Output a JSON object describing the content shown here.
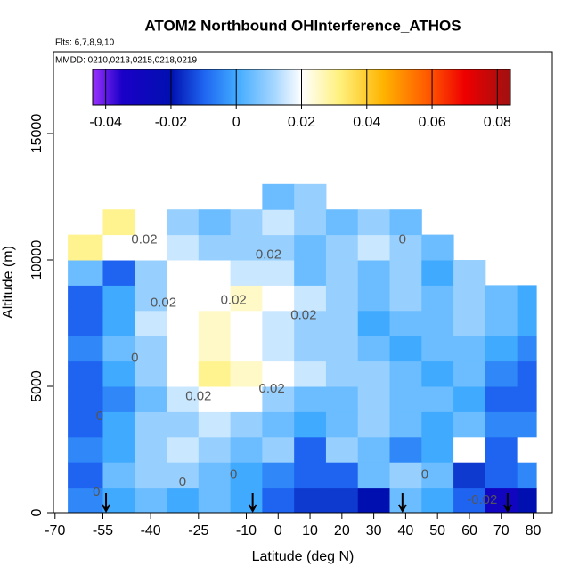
{
  "chart_data": {
    "type": "heatmap",
    "title": "ATOM2 Northbound OHInterference_ATHOS",
    "subtitle": "Flts: 6,7,8,9,10",
    "note": "MMDD: 0210,0213,0215,0218,0219",
    "xlabel": "Latitude (deg N)",
    "ylabel": "Altitude (m)",
    "xlim": [
      -70.5,
      86
    ],
    "ylim": [
      0,
      18240
    ],
    "xticks": [
      -70,
      -55,
      -40,
      -25,
      -10,
      0,
      10,
      20,
      30,
      40,
      50,
      60,
      70,
      80
    ],
    "yticks": [
      0,
      5000,
      10000,
      15000
    ],
    "lat_edges": [
      -66,
      -55,
      -45,
      -35,
      -25,
      -15,
      -5,
      5,
      15,
      25,
      35,
      45,
      55,
      65,
      75,
      81
    ],
    "alt_edges": [
      0,
      1000,
      2000,
      3000,
      4000,
      5000,
      6000,
      7000,
      8000,
      9000,
      10000,
      11000,
      12000,
      13000
    ],
    "values": [
      [
        -0.005,
        0.0,
        0.005,
        0.0,
        0.005,
        0.0,
        -0.01,
        -0.015,
        -0.015,
        -0.02,
        0.005,
        0.0,
        -0.01,
        -0.03,
        -0.02
      ],
      [
        -0.01,
        0.005,
        0.01,
        0.01,
        0.005,
        0.0,
        -0.005,
        -0.01,
        -0.01,
        0.005,
        0.01,
        0.005,
        -0.015,
        -0.01,
        -0.005
      ],
      [
        -0.005,
        0.0,
        0.01,
        0.015,
        0.01,
        0.005,
        0.01,
        -0.01,
        0.01,
        0.005,
        -0.005,
        0.0,
        0.02,
        -0.01,
        0.02
      ],
      [
        -0.01,
        0.0,
        0.01,
        0.01,
        0.015,
        0.01,
        0.005,
        0.0,
        0.005,
        0.01,
        0.005,
        0.0,
        0.005,
        -0.005,
        -0.005
      ],
      [
        -0.01,
        -0.005,
        0.005,
        0.015,
        0.02,
        0.02,
        0.01,
        0.005,
        0.005,
        0.01,
        0.005,
        0.005,
        0.0,
        -0.01,
        -0.01
      ],
      [
        -0.01,
        0.0,
        0.01,
        0.02,
        0.03,
        0.025,
        0.02,
        0.015,
        0.01,
        0.01,
        0.005,
        0.0,
        0.005,
        -0.005,
        -0.01
      ],
      [
        -0.005,
        0.005,
        0.01,
        0.02,
        0.025,
        0.02,
        0.015,
        0.01,
        0.01,
        0.005,
        0.0,
        0.005,
        0.005,
        0.0,
        -0.005
      ],
      [
        -0.01,
        0.0,
        0.015,
        0.02,
        0.025,
        0.02,
        0.015,
        0.01,
        0.01,
        0.0,
        0.005,
        0.005,
        0.01,
        0.005,
        0.0
      ],
      [
        -0.01,
        0.0,
        0.01,
        0.02,
        0.02,
        0.025,
        0.02,
        0.015,
        0.01,
        0.005,
        0.01,
        0.005,
        0.01,
        0.005,
        0.0
      ],
      [
        0.005,
        -0.01,
        0.01,
        0.02,
        0.02,
        0.015,
        0.015,
        0.005,
        0.01,
        0.005,
        0.01,
        0.0,
        0.01,
        null,
        null
      ],
      [
        0.03,
        0.02,
        0.02,
        0.015,
        0.01,
        0.01,
        0.01,
        0.005,
        0.01,
        0.015,
        0.01,
        0.005,
        null,
        null,
        null
      ],
      [
        null,
        0.03,
        0.02,
        0.01,
        0.005,
        0.01,
        0.015,
        0.01,
        0.005,
        0.01,
        0.005,
        null,
        null,
        null,
        null
      ],
      [
        null,
        null,
        null,
        null,
        null,
        null,
        0.005,
        0.01,
        null,
        null,
        null,
        null,
        null,
        null,
        null
      ]
    ],
    "clim": [
      -0.044,
      0.084
    ],
    "cticks": [
      -0.04,
      -0.02,
      0.0,
      0.02,
      0.04,
      0.06,
      0.08
    ],
    "colorscale": [
      [
        -0.044,
        "#9b30ff"
      ],
      [
        -0.035,
        "#1a00c8"
      ],
      [
        -0.02,
        "#0010b0"
      ],
      [
        -0.01,
        "#1e64f0"
      ],
      [
        0.0,
        "#40aaff"
      ],
      [
        0.012,
        "#a8d8ff"
      ],
      [
        0.02,
        "#ffffff"
      ],
      [
        0.032,
        "#fff07a"
      ],
      [
        0.045,
        "#ffb400"
      ],
      [
        0.06,
        "#ff5000"
      ],
      [
        0.07,
        "#ee0000"
      ],
      [
        0.084,
        "#a01010"
      ]
    ],
    "annotations": [
      {
        "text": "0.02",
        "x": -42,
        "y": 10800
      },
      {
        "text": "0.02",
        "x": -36,
        "y": 8300
      },
      {
        "text": "0.02",
        "x": -14,
        "y": 8400
      },
      {
        "text": "0.02",
        "x": -3,
        "y": 10200
      },
      {
        "text": "0.02",
        "x": 8,
        "y": 7800
      },
      {
        "text": "0.02",
        "x": -25,
        "y": 4600
      },
      {
        "text": "0.02",
        "x": -2,
        "y": 4900
      },
      {
        "text": "0",
        "x": -45,
        "y": 6100
      },
      {
        "text": "0",
        "x": -56,
        "y": 3800
      },
      {
        "text": "0",
        "x": -57,
        "y": 800
      },
      {
        "text": "0",
        "x": -14,
        "y": 1500
      },
      {
        "text": "0",
        "x": -30,
        "y": 1200
      },
      {
        "text": "0",
        "x": 39,
        "y": 10800
      },
      {
        "text": "0",
        "x": 46,
        "y": 1500
      },
      {
        "text": "-0.02",
        "x": 64,
        "y": 500
      }
    ],
    "arrows_x": [
      -54,
      -8,
      39,
      72
    ]
  }
}
